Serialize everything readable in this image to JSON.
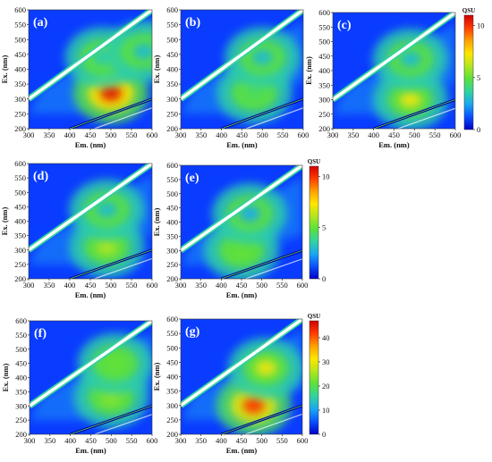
{
  "figure": {
    "colorscale": [
      "#0000c8",
      "#0a50ff",
      "#19a8f0",
      "#32d2a0",
      "#5ae13c",
      "#b4e61e",
      "#ffe600",
      "#ffa000",
      "#ff3c00",
      "#d20000"
    ]
  },
  "chart_data": [
    {
      "type": "heatmap",
      "panel": "(a)",
      "xlabel": "Em. (nm)",
      "ylabel": "Ex. (nm)",
      "xlim": [
        300,
        600
      ],
      "ylim": [
        200,
        600
      ],
      "xticks": [
        300,
        350,
        400,
        450,
        500,
        550,
        600
      ],
      "yticks": [
        200,
        250,
        300,
        350,
        400,
        450,
        500,
        550,
        600
      ],
      "peaks": [
        {
          "em": 500,
          "ex": 320,
          "intensity": 10.5
        },
        {
          "em": 480,
          "ex": 440,
          "intensity": 3.5
        },
        {
          "em": 580,
          "ex": 460,
          "intensity": 3.0
        }
      ]
    },
    {
      "type": "heatmap",
      "panel": "(b)",
      "xlabel": "Em. (nm)",
      "ylabel": "Ex. (nm)",
      "xlim": [
        300,
        600
      ],
      "ylim": [
        200,
        600
      ],
      "xticks": [
        300,
        350,
        400,
        450,
        500,
        550,
        600
      ],
      "yticks": [
        200,
        250,
        300,
        350,
        400,
        450,
        500,
        550,
        600
      ],
      "peaks": [
        {
          "em": 480,
          "ex": 320,
          "intensity": 4.5
        },
        {
          "em": 500,
          "ex": 440,
          "intensity": 3.0
        }
      ]
    },
    {
      "type": "heatmap",
      "panel": "(c)",
      "xlabel": "Em. (nm)",
      "ylabel": "Ex. (nm)",
      "xlim": [
        300,
        600
      ],
      "ylim": [
        200,
        600
      ],
      "xticks": [
        300,
        350,
        400,
        450,
        500,
        550,
        600
      ],
      "yticks": [
        200,
        250,
        300,
        350,
        400,
        450,
        500,
        550,
        600
      ],
      "colorbar": {
        "title": "QSU",
        "min": 0,
        "max": 11,
        "ticks": [
          0,
          5,
          10
        ]
      },
      "peaks": [
        {
          "em": 490,
          "ex": 300,
          "intensity": 7.0
        },
        {
          "em": 490,
          "ex": 440,
          "intensity": 3.0
        }
      ]
    },
    {
      "type": "heatmap",
      "panel": "(d)",
      "xlabel": "Em. (nm)",
      "ylabel": "Ex. (nm)",
      "xlim": [
        300,
        600
      ],
      "ylim": [
        200,
        600
      ],
      "xticks": [
        300,
        350,
        400,
        450,
        500,
        550,
        600
      ],
      "yticks": [
        200,
        250,
        300,
        350,
        400,
        450,
        500,
        550,
        600
      ],
      "peaks": [
        {
          "em": 490,
          "ex": 310,
          "intensity": 6.0
        },
        {
          "em": 490,
          "ex": 440,
          "intensity": 3.0
        }
      ]
    },
    {
      "type": "heatmap",
      "panel": "(e)",
      "xlabel": "Em. (nm)",
      "ylabel": "Ex. (nm)",
      "xlim": [
        300,
        600
      ],
      "ylim": [
        200,
        600
      ],
      "xticks": [
        300,
        350,
        400,
        450,
        500,
        550,
        600
      ],
      "yticks": [
        200,
        250,
        300,
        350,
        400,
        450,
        500,
        550,
        600
      ],
      "colorbar": {
        "title": "QSU",
        "min": 0,
        "max": 11,
        "ticks": [
          0,
          5,
          10
        ]
      },
      "peaks": [
        {
          "em": 450,
          "ex": 300,
          "intensity": 5.0
        },
        {
          "em": 470,
          "ex": 430,
          "intensity": 2.5
        }
      ]
    },
    {
      "type": "heatmap",
      "panel": "(f)",
      "xlabel": "Em. (nm)",
      "ylabel": "Ex. (nm)",
      "xlim": [
        300,
        600
      ],
      "ylim": [
        200,
        600
      ],
      "xticks": [
        300,
        350,
        400,
        450,
        500,
        550,
        600
      ],
      "yticks": [
        200,
        250,
        300,
        350,
        400,
        450,
        500,
        550,
        600
      ],
      "peaks": [
        {
          "em": 500,
          "ex": 330,
          "intensity": 5.5
        },
        {
          "em": 510,
          "ex": 450,
          "intensity": 5.0
        }
      ]
    },
    {
      "type": "heatmap",
      "panel": "(g)",
      "xlabel": "Em. (nm)",
      "ylabel": "Ex. (nm)",
      "xlim": [
        300,
        600
      ],
      "ylim": [
        200,
        600
      ],
      "xticks": [
        300,
        350,
        400,
        450,
        500,
        550,
        600
      ],
      "yticks": [
        200,
        250,
        300,
        350,
        400,
        450,
        500,
        550,
        600
      ],
      "colorbar": {
        "title": "QSU",
        "min": 0,
        "max": 47,
        "ticks": [
          0,
          10,
          20,
          30,
          40
        ]
      },
      "peaks": [
        {
          "em": 480,
          "ex": 300,
          "intensity": 42
        },
        {
          "em": 510,
          "ex": 430,
          "intensity": 30
        }
      ]
    }
  ]
}
